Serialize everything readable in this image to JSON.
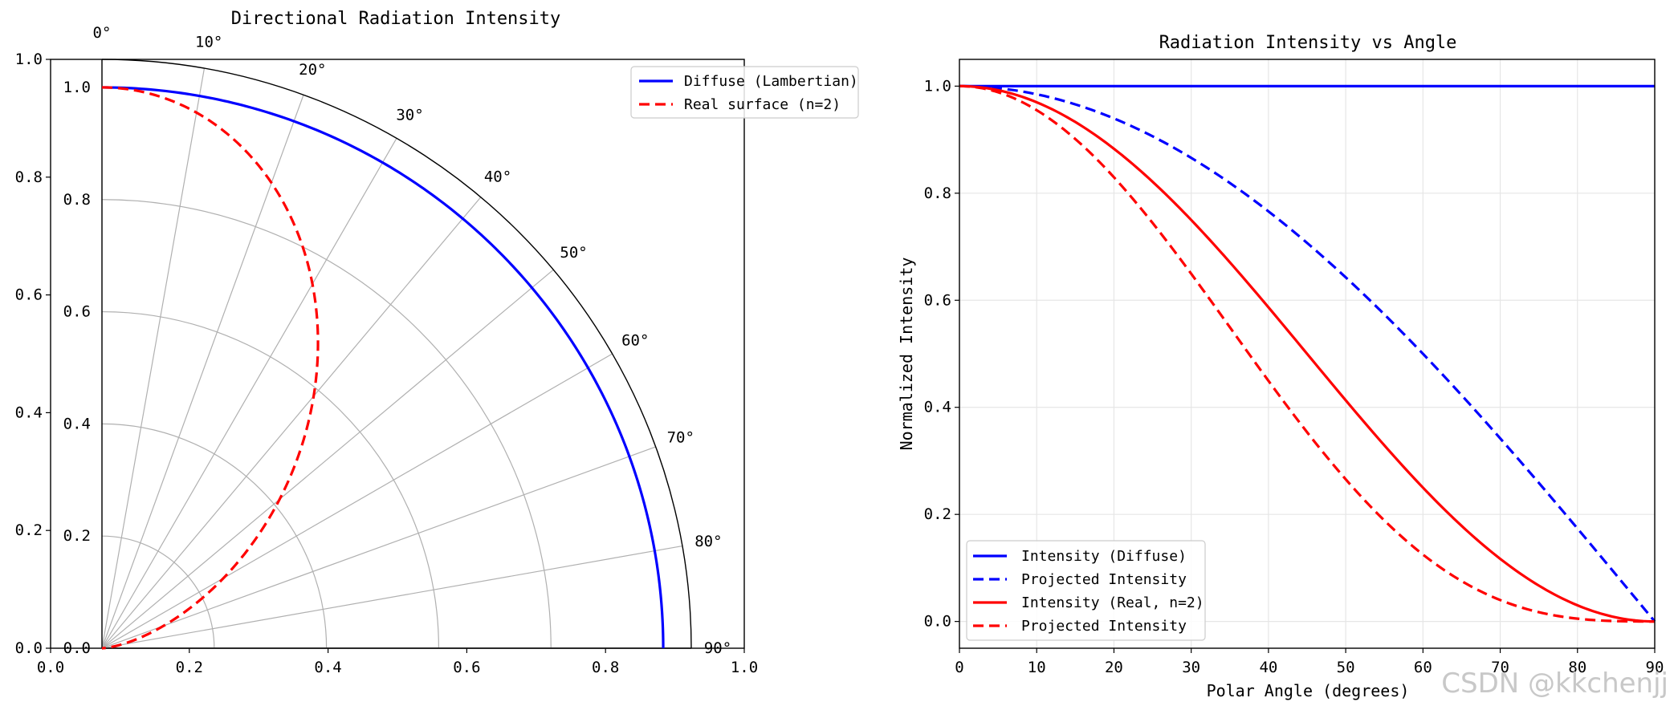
{
  "watermark": "CSDN @kkchenjj",
  "chart_data": [
    {
      "type": "polar",
      "title": "Directional Radiation Intensity",
      "angle_range_deg": [
        0,
        90
      ],
      "angle_ticks": [
        0,
        10,
        20,
        30,
        40,
        50,
        60,
        70,
        80,
        90
      ],
      "angle_tick_labels": [
        "0°",
        "10°",
        "20°",
        "30°",
        "40°",
        "50°",
        "60°",
        "70°",
        "80°",
        "90°"
      ],
      "radial_range": [
        0,
        1.05
      ],
      "radial_ticks": [
        0.0,
        0.2,
        0.4,
        0.6,
        0.8,
        1.0
      ],
      "radial_tick_labels": [
        "0.0",
        "0.2",
        "0.4",
        "0.6",
        "0.8",
        "1.0"
      ],
      "outer_axes": {
        "x_ticks": [
          0.0,
          0.2,
          0.4,
          0.6,
          0.8,
          1.0
        ],
        "x_tick_labels": [
          "0.0",
          "0.2",
          "0.4",
          "0.6",
          "0.8",
          "1.0"
        ],
        "y_ticks": [
          0.0,
          0.2,
          0.4,
          0.6,
          0.8,
          1.0
        ],
        "y_tick_labels": [
          "0.0",
          "0.2",
          "0.4",
          "0.6",
          "0.8",
          "1.0"
        ]
      },
      "legend_position": "top-right",
      "series": [
        {
          "name": "Diffuse (Lambertian)",
          "color": "#0000ff",
          "dash": "solid",
          "formula": "r = 1",
          "theta_deg": [
            0,
            15,
            30,
            45,
            60,
            75,
            90
          ],
          "r": [
            1,
            1,
            1,
            1,
            1,
            1,
            1
          ]
        },
        {
          "name": "Real surface (n=2)",
          "color": "#ff0000",
          "dash": "dashed",
          "formula": "r = cos^2(theta)",
          "theta_deg": [
            0,
            15,
            30,
            45,
            60,
            75,
            90
          ],
          "r": [
            1.0,
            0.933,
            0.75,
            0.5,
            0.25,
            0.067,
            0.0
          ]
        }
      ]
    },
    {
      "type": "line",
      "title": "Radiation Intensity vs Angle",
      "xlabel": "Polar Angle (degrees)",
      "ylabel": "Normalized Intensity",
      "xlim": [
        0,
        90
      ],
      "ylim": [
        -0.05,
        1.05
      ],
      "x_ticks": [
        0,
        10,
        20,
        30,
        40,
        50,
        60,
        70,
        80,
        90
      ],
      "x_tick_labels": [
        "0",
        "10",
        "20",
        "30",
        "40",
        "50",
        "60",
        "70",
        "80",
        "90"
      ],
      "y_ticks": [
        0.0,
        0.2,
        0.4,
        0.6,
        0.8,
        1.0
      ],
      "y_tick_labels": [
        "0.0",
        "0.2",
        "0.4",
        "0.6",
        "0.8",
        "1.0"
      ],
      "grid": true,
      "legend_position": "bottom-left",
      "x": [
        0,
        10,
        20,
        30,
        40,
        50,
        60,
        70,
        80,
        90
      ],
      "series": [
        {
          "name": "Intensity (Diffuse)",
          "color": "#0000ff",
          "dash": "solid",
          "formula": "1",
          "values": [
            1,
            1,
            1,
            1,
            1,
            1,
            1,
            1,
            1,
            1
          ]
        },
        {
          "name": "Projected Intensity",
          "color": "#0000ff",
          "dash": "dashed",
          "formula": "cos(theta)",
          "values": [
            1.0,
            0.985,
            0.94,
            0.866,
            0.766,
            0.643,
            0.5,
            0.342,
            0.174,
            0.0
          ]
        },
        {
          "name": "Intensity (Real, n=2)",
          "color": "#ff0000",
          "dash": "solid",
          "formula": "cos^2(theta)",
          "values": [
            1.0,
            0.97,
            0.883,
            0.75,
            0.587,
            0.413,
            0.25,
            0.117,
            0.03,
            0.0
          ]
        },
        {
          "name": "Projected Intensity",
          "color": "#ff0000",
          "dash": "dashed",
          "formula": "cos^3(theta)",
          "values": [
            1.0,
            0.955,
            0.83,
            0.65,
            0.45,
            0.266,
            0.125,
            0.04,
            0.005,
            0.0
          ]
        }
      ]
    }
  ]
}
